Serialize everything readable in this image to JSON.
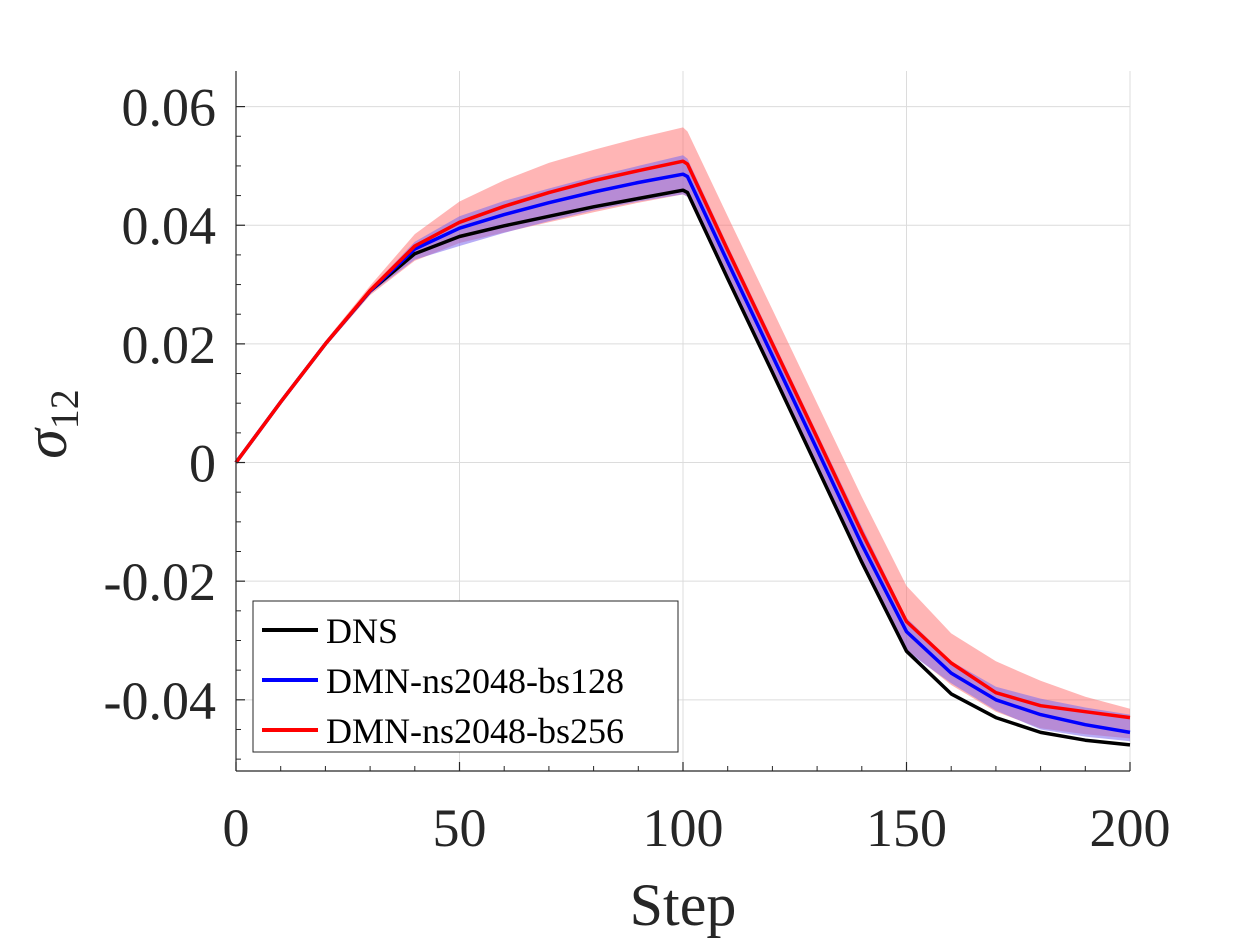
{
  "chart_data": {
    "type": "line",
    "title": "",
    "xlabel": "Step",
    "ylabel": "σ",
    "ylabel_subscript": "12",
    "xlim": [
      0,
      200
    ],
    "ylim": [
      -0.052,
      0.066
    ],
    "grid": true,
    "x_ticks": [
      0,
      50,
      100,
      150,
      200
    ],
    "x_tick_labels": [
      "0",
      "50",
      "100",
      "150",
      "200"
    ],
    "y_ticks": [
      0.06,
      0.04,
      0.02,
      0,
      -0.02,
      -0.04
    ],
    "y_tick_labels": [
      "0.06",
      "0.04",
      "0.02",
      "0",
      "-0.02",
      "-0.04"
    ],
    "legend_position": "bottom-left",
    "x": [
      0,
      10,
      20,
      30,
      40,
      50,
      60,
      70,
      80,
      90,
      100,
      101,
      110,
      120,
      130,
      140,
      150,
      160,
      170,
      180,
      190,
      200
    ],
    "series": [
      {
        "name": "DNS",
        "color": "#000000",
        "values": [
          0,
          0.0102,
          0.02,
          0.0289,
          0.0352,
          0.0381,
          0.0399,
          0.0415,
          0.0431,
          0.0445,
          0.0459,
          0.0455,
          0.031,
          0.0152,
          -0.0008,
          -0.0168,
          -0.0318,
          -0.039,
          -0.043,
          -0.0455,
          -0.0468,
          -0.0476
        ]
      },
      {
        "name": "DMN-ns2048-bs128",
        "color": "#0000ff",
        "band_color": "#7b68ee",
        "values": [
          0,
          0.0102,
          0.02,
          0.0289,
          0.036,
          0.0395,
          0.0418,
          0.0438,
          0.0456,
          0.0472,
          0.0486,
          0.0482,
          0.0338,
          0.018,
          0.0022,
          -0.0138,
          -0.0285,
          -0.0355,
          -0.04,
          -0.0425,
          -0.0442,
          -0.0455
        ],
        "band_upper": [
          0,
          0.0103,
          0.0202,
          0.0293,
          0.0372,
          0.0415,
          0.0441,
          0.0462,
          0.0482,
          0.05,
          0.0518,
          0.0512,
          0.0366,
          0.0208,
          0.005,
          -0.0108,
          -0.0262,
          -0.0335,
          -0.0378,
          -0.0398,
          -0.0413,
          -0.0425
        ],
        "band_lower": [
          0,
          0.0101,
          0.0198,
          0.0285,
          0.0342,
          0.0365,
          0.0387,
          0.0407,
          0.0425,
          0.044,
          0.0452,
          0.0448,
          0.0305,
          0.0148,
          -0.0012,
          -0.0172,
          -0.0318,
          -0.0372,
          -0.0418,
          -0.045,
          -0.0462,
          -0.047
        ]
      },
      {
        "name": "DMN-ns2048-bs256",
        "color": "#ff0000",
        "band_color": "#ff6b6b",
        "values": [
          0,
          0.0102,
          0.02,
          0.029,
          0.0365,
          0.0405,
          0.0432,
          0.0455,
          0.0475,
          0.0492,
          0.0508,
          0.0503,
          0.0358,
          0.02,
          0.0042,
          -0.0118,
          -0.0268,
          -0.0338,
          -0.0388,
          -0.041,
          -0.042,
          -0.043
        ],
        "band_upper": [
          0,
          0.0104,
          0.0205,
          0.0298,
          0.0385,
          0.044,
          0.0476,
          0.0505,
          0.0527,
          0.0547,
          0.0565,
          0.0558,
          0.0415,
          0.0258,
          0.01,
          -0.0058,
          -0.0208,
          -0.0288,
          -0.0335,
          -0.0368,
          -0.0395,
          -0.0415
        ],
        "band_lower": [
          0,
          0.01,
          0.0195,
          0.0282,
          0.034,
          0.037,
          0.0388,
          0.0405,
          0.0422,
          0.0438,
          0.0452,
          0.0448,
          0.0305,
          0.0148,
          -0.001,
          -0.017,
          -0.0315,
          -0.0375,
          -0.042,
          -0.0448,
          -0.0458,
          -0.0465
        ]
      }
    ]
  }
}
